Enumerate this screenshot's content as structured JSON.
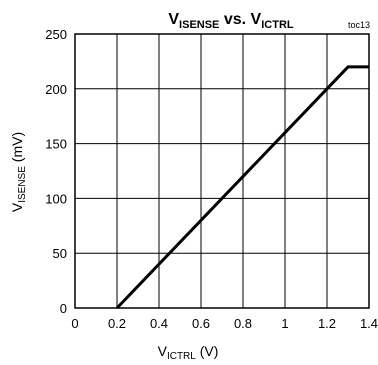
{
  "chart_data": {
    "type": "line",
    "title": {
      "main": "V",
      "sub1": "ISENSE",
      "mid": " vs. V",
      "sub2": "ICTRL"
    },
    "tag": "toc13",
    "xlabel": {
      "main": "V",
      "sub": "ICTRL",
      "unit": " (V)"
    },
    "ylabel": {
      "main": "V",
      "sub": "ISENSE",
      "unit": " (mV)"
    },
    "xlim": [
      0,
      1.4
    ],
    "ylim": [
      0,
      250
    ],
    "x_ticks": [
      0,
      0.2,
      0.4,
      0.6,
      0.8,
      1,
      1.2,
      1.4
    ],
    "x_tick_labels": [
      "0",
      "0.2",
      "0.4",
      "0.6",
      "0.8",
      "1",
      "1.2",
      "1.4"
    ],
    "y_ticks": [
      0,
      50,
      100,
      150,
      200,
      250
    ],
    "y_tick_labels": [
      "0",
      "50",
      "100",
      "150",
      "200",
      "250"
    ],
    "grid": true,
    "series": [
      {
        "points": [
          [
            0.2,
            0
          ],
          [
            1.3,
            220
          ],
          [
            1.4,
            220
          ]
        ],
        "color": "#000000"
      }
    ]
  }
}
